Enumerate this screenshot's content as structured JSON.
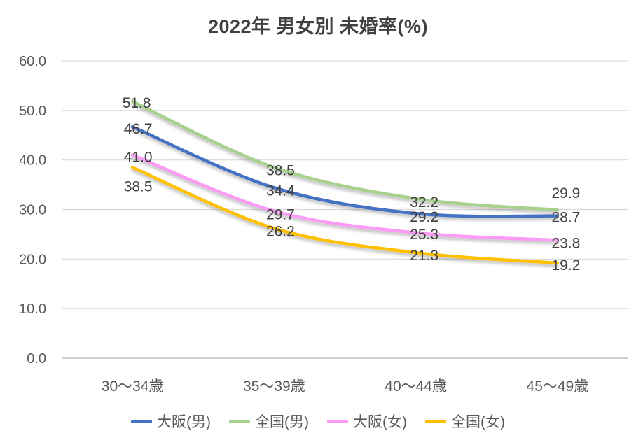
{
  "chart_data": {
    "type": "line",
    "title": "2022年 男女別 未婚率(%)",
    "categories": [
      "30〜34歳",
      "35〜39歳",
      "40〜44歳",
      "45〜49歳"
    ],
    "series": [
      {
        "name": "大阪(男)",
        "color": "#4472C4",
        "values": [
          46.7,
          34.4,
          29.2,
          28.7
        ]
      },
      {
        "name": "全国(男)",
        "color": "#A9D18E",
        "values": [
          51.8,
          38.5,
          32.2,
          29.9
        ]
      },
      {
        "name": "大阪(女)",
        "color": "#FC9BF5",
        "values": [
          41.0,
          29.7,
          25.3,
          23.8
        ]
      },
      {
        "name": "全国(女)",
        "color": "#FFC000",
        "values": [
          38.5,
          26.2,
          21.3,
          19.2
        ]
      }
    ],
    "y_ticks": [
      60,
      50,
      40,
      30,
      20,
      10,
      0
    ],
    "ylim": [
      0,
      60
    ],
    "tick_decimals": 1,
    "data_label_decimals": 1,
    "grid": true,
    "smooth": true,
    "legend_position": "bottom",
    "colors": {
      "title_text": "#404040",
      "axis_text": "#595959",
      "data_label_text": "#404040",
      "gridline": "#D9D9D9",
      "baseline": "#BFBFBF",
      "background": "#FFFFFF"
    }
  }
}
